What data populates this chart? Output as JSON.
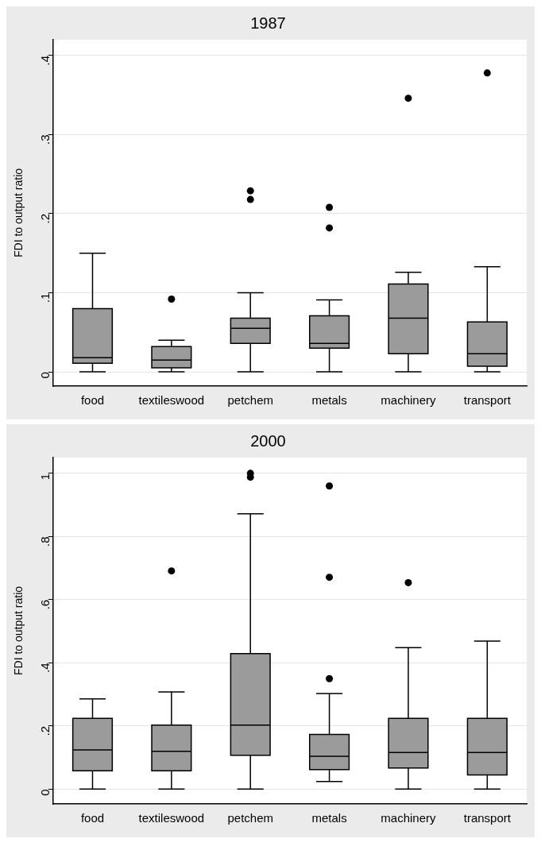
{
  "chart_data": [
    {
      "type": "box",
      "title": "1987",
      "ylabel": "FDI to output ratio",
      "categories": [
        "food",
        "textileswood",
        "petchem",
        "metals",
        "machinery",
        "transport"
      ],
      "ylim": [
        -0.018,
        0.42
      ],
      "yticks": [
        {
          "value": 0,
          "label": "0"
        },
        {
          "value": 0.1,
          "label": ".1"
        },
        {
          "value": 0.2,
          "label": ".2"
        },
        {
          "value": 0.3,
          "label": ".3"
        },
        {
          "value": 0.4,
          "label": ".4"
        }
      ],
      "grid": "y",
      "series": [
        {
          "color": "#9b9b9b",
          "boxes": [
            {
              "low": 0,
              "q1": 0.011,
              "median": 0.018,
              "q3": 0.08,
              "high": 0.15
            },
            {
              "low": 0,
              "q1": 0.005,
              "median": 0.015,
              "q3": 0.032,
              "high": 0.04,
              "outliers": [
                0.092
              ]
            },
            {
              "low": 0,
              "q1": 0.036,
              "median": 0.055,
              "q3": 0.068,
              "high": 0.1,
              "outliers": [
                0.229,
                0.218
              ]
            },
            {
              "low": 0,
              "q1": 0.03,
              "median": 0.036,
              "q3": 0.071,
              "high": 0.091,
              "outliers": [
                0.208,
                0.182
              ]
            },
            {
              "low": 0,
              "q1": 0.023,
              "median": 0.068,
              "q3": 0.111,
              "high": 0.126,
              "outliers": [
                0.346
              ]
            },
            {
              "low": 0,
              "q1": 0.007,
              "median": 0.023,
              "q3": 0.063,
              "high": 0.133,
              "outliers": [
                0.378
              ]
            }
          ]
        }
      ]
    },
    {
      "type": "box",
      "title": "2000",
      "ylabel": "FDI to output ratio",
      "categories": [
        "food",
        "textileswood",
        "petchem",
        "metals",
        "machinery",
        "transport"
      ],
      "ylim": [
        -0.047,
        1.05
      ],
      "yticks": [
        {
          "value": 0,
          "label": "0"
        },
        {
          "value": 0.2,
          "label": ".2"
        },
        {
          "value": 0.4,
          "label": ".4"
        },
        {
          "value": 0.6,
          "label": ".6"
        },
        {
          "value": 0.8,
          "label": ".8"
        },
        {
          "value": 1,
          "label": "1"
        }
      ],
      "grid": "y",
      "series": [
        {
          "color": "#9b9b9b",
          "boxes": [
            {
              "low": 0,
              "q1": 0.058,
              "median": 0.124,
              "q3": 0.224,
              "high": 0.286
            },
            {
              "low": 0,
              "q1": 0.058,
              "median": 0.12,
              "q3": 0.203,
              "high": 0.308,
              "outliers": [
                0.691
              ]
            },
            {
              "low": 0,
              "q1": 0.107,
              "median": 0.203,
              "q3": 0.429,
              "high": 0.872,
              "outliers": [
                1.0,
                0.988
              ]
            },
            {
              "low": 0.024,
              "q1": 0.062,
              "median": 0.104,
              "q3": 0.173,
              "high": 0.303,
              "outliers": [
                0.96,
                0.671,
                0.35
              ]
            },
            {
              "low": 0,
              "q1": 0.067,
              "median": 0.116,
              "q3": 0.224,
              "high": 0.448,
              "outliers": [
                0.654
              ]
            },
            {
              "low": 0,
              "q1": 0.045,
              "median": 0.116,
              "q3": 0.224,
              "high": 0.469
            }
          ]
        }
      ]
    }
  ]
}
